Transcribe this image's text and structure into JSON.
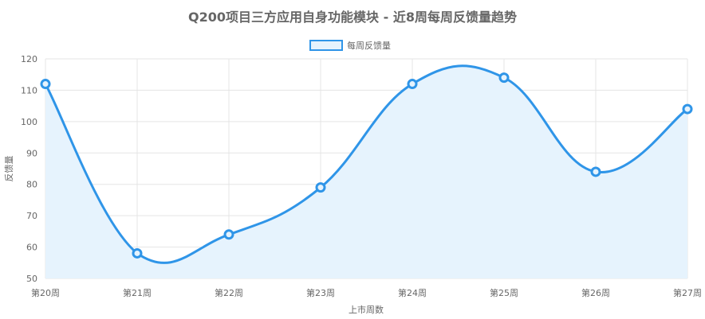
{
  "chart_data": {
    "type": "line",
    "title": "Q200项目三方应用自身功能模块 - 近8周每周反馈量趋势",
    "xlabel": "上市周数",
    "ylabel": "反馈量",
    "categories": [
      "第20周",
      "第21周",
      "第22周",
      "第23周",
      "第24周",
      "第25周",
      "第26周",
      "第27周"
    ],
    "series": [
      {
        "name": "每周反馈量",
        "values": [
          112,
          58,
          64,
          79,
          112,
          114,
          84,
          104
        ]
      }
    ],
    "ylim": [
      50,
      120
    ],
    "yticks": [
      50,
      60,
      70,
      80,
      90,
      100,
      110,
      120
    ],
    "grid": true,
    "legend_position": "top-center",
    "smooth": true,
    "filled": true,
    "colors": {
      "line": "#2f95e8",
      "fill": "#e6f3fd",
      "grid": "#e5e5e5",
      "text": "#666666"
    }
  }
}
